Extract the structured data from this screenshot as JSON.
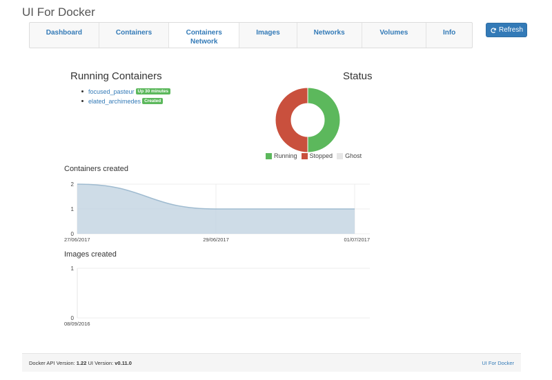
{
  "app": {
    "title": "UI For Docker"
  },
  "nav": {
    "items": [
      {
        "label": "Dashboard",
        "active": true
      },
      {
        "label": "Containers",
        "active": false
      },
      {
        "label": "Containers Network",
        "active": false
      },
      {
        "label": "Images",
        "active": false
      },
      {
        "label": "Networks",
        "active": false
      },
      {
        "label": "Volumes",
        "active": false
      },
      {
        "label": "Info",
        "active": false
      }
    ],
    "refresh_label": "Refresh"
  },
  "running": {
    "title": "Running Containers",
    "items": [
      {
        "name": "focused_pasteur",
        "badge": "Up 30 minutes"
      },
      {
        "name": "elated_archimedes",
        "badge": "Created"
      }
    ]
  },
  "status": {
    "title": "Status",
    "legend": [
      {
        "label": "Running",
        "color": "#5cb85c"
      },
      {
        "label": "Stopped",
        "color": "#c9503d"
      },
      {
        "label": "Ghost",
        "color": "#e6e6e6"
      }
    ]
  },
  "containers_created": {
    "title": "Containers created"
  },
  "images_created": {
    "title": "Images created"
  },
  "chart_data": [
    {
      "type": "pie",
      "title": "Status",
      "categories": [
        "Running",
        "Stopped",
        "Ghost"
      ],
      "values": [
        1,
        1,
        0
      ],
      "colors": [
        "#5cb85c",
        "#c9503d",
        "#e6e6e6"
      ],
      "legend": "bottom"
    },
    {
      "type": "area",
      "title": "Containers created",
      "x": [
        "27/06/2017",
        "29/06/2017",
        "01/07/2017"
      ],
      "x_ticks": [
        "27/06/2017",
        "29/06/2017",
        "01/07/2017"
      ],
      "series": [
        {
          "values": [
            2,
            1,
            1
          ]
        }
      ],
      "y_ticks": [
        "0",
        "1",
        "2"
      ],
      "ylim": [
        0,
        2
      ],
      "grid": true,
      "color": "#c5d6e3"
    },
    {
      "type": "line",
      "title": "Images created",
      "x": [],
      "x_ticks": [
        "08/09/2016"
      ],
      "series": [],
      "y_ticks": [
        "0",
        "1"
      ],
      "ylim": [
        0,
        1
      ],
      "grid": true
    }
  ],
  "footer": {
    "api_prefix": "Docker API Version: ",
    "api_version": "1.22",
    "ui_prefix": " UI Version: ",
    "ui_version": "v0.11.0",
    "link": "UI For Docker"
  }
}
